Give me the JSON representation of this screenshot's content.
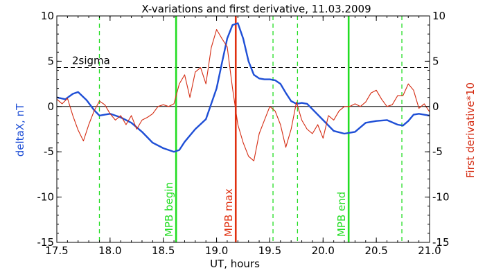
{
  "chart_data": {
    "type": "line",
    "title": "X-variations and first derivative, 11.03.2009",
    "xlabel": "UT, hours",
    "ylabel_left": "deltaX, nT",
    "ylabel_right": "First derivative*10",
    "xlim": [
      17.5,
      21.0
    ],
    "ylim": [
      -15,
      10
    ],
    "xticks": [
      "17.5",
      "18.0",
      "18.5",
      "19.0",
      "19.5",
      "20.0",
      "20.5",
      "21.0"
    ],
    "yticks": [
      "10",
      "5",
      "0",
      "-5",
      "-10",
      "-15"
    ],
    "grid": false,
    "colors": {
      "deltaX": "#1f4fd6",
      "derivative": "#d42a10",
      "green": "#22dd22",
      "red_marker": "#e03010",
      "axis": "#000000"
    },
    "threshold": {
      "label": "2sigma",
      "value": 4.3
    },
    "zero_line": 0,
    "vertical_markers": [
      {
        "x": 18.62,
        "label": "MPB begin",
        "color": "#22dd22",
        "style": "solid"
      },
      {
        "x": 19.18,
        "label": "MPB max",
        "color": "#e03010",
        "style": "solid"
      },
      {
        "x": 20.24,
        "label": "MPB end",
        "color": "#22dd22",
        "style": "solid"
      }
    ],
    "dashed_markers": [
      17.9,
      19.53,
      19.76,
      20.74
    ],
    "series": [
      {
        "key": "deltaX",
        "x": [
          17.5,
          17.58,
          17.65,
          17.7,
          17.78,
          17.85,
          17.9,
          17.95,
          18.0,
          18.1,
          18.2,
          18.3,
          18.4,
          18.5,
          18.6,
          18.65,
          18.7,
          18.8,
          18.9,
          19.0,
          19.05,
          19.1,
          19.15,
          19.2,
          19.25,
          19.3,
          19.35,
          19.4,
          19.45,
          19.5,
          19.55,
          19.6,
          19.65,
          19.7,
          19.75,
          19.8,
          19.85,
          19.9,
          20.0,
          20.1,
          20.2,
          20.3,
          20.4,
          20.5,
          20.6,
          20.7,
          20.75,
          20.8,
          20.85,
          20.9,
          21.0
        ],
        "y": [
          1.0,
          0.8,
          1.4,
          1.6,
          0.7,
          -0.4,
          -1.0,
          -0.9,
          -0.8,
          -1.2,
          -1.8,
          -2.8,
          -4.0,
          -4.6,
          -5.0,
          -4.8,
          -3.9,
          -2.5,
          -1.4,
          2.0,
          4.8,
          7.5,
          9.0,
          9.2,
          7.5,
          5.0,
          3.5,
          3.1,
          3.0,
          3.0,
          2.9,
          2.5,
          1.5,
          0.6,
          0.3,
          0.4,
          0.3,
          -0.3,
          -1.5,
          -2.7,
          -3.0,
          -2.8,
          -1.8,
          -1.6,
          -1.5,
          -2.0,
          -2.1,
          -1.6,
          -0.9,
          -0.8,
          -1.0
        ]
      },
      {
        "key": "derivative",
        "x": [
          17.5,
          17.55,
          17.6,
          17.65,
          17.7,
          17.75,
          17.8,
          17.85,
          17.9,
          17.95,
          18.0,
          18.05,
          18.1,
          18.15,
          18.2,
          18.25,
          18.3,
          18.35,
          18.4,
          18.45,
          18.5,
          18.55,
          18.6,
          18.65,
          18.7,
          18.75,
          18.8,
          18.85,
          18.9,
          18.95,
          19.0,
          19.05,
          19.1,
          19.15,
          19.2,
          19.25,
          19.3,
          19.35,
          19.4,
          19.45,
          19.5,
          19.55,
          19.6,
          19.65,
          19.7,
          19.75,
          19.8,
          19.85,
          19.9,
          19.95,
          20.0,
          20.05,
          20.1,
          20.15,
          20.2,
          20.25,
          20.3,
          20.35,
          20.4,
          20.45,
          20.5,
          20.55,
          20.6,
          20.65,
          20.7,
          20.75,
          20.8,
          20.85,
          20.9,
          20.95,
          21.0
        ],
        "y": [
          0.8,
          0.3,
          0.9,
          -1.0,
          -2.6,
          -3.8,
          -2.0,
          -0.5,
          0.6,
          0.2,
          -0.8,
          -1.5,
          -1.0,
          -2.0,
          -1.0,
          -2.5,
          -1.5,
          -1.2,
          -0.8,
          0.0,
          0.2,
          0.0,
          0.3,
          2.5,
          3.5,
          1.0,
          3.8,
          4.3,
          2.5,
          6.5,
          8.5,
          7.5,
          6.6,
          2.0,
          -2.0,
          -4.0,
          -5.5,
          -6.0,
          -3.0,
          -1.5,
          0.0,
          -0.5,
          -2.0,
          -4.5,
          -2.5,
          0.5,
          -1.5,
          -2.5,
          -3.0,
          -2.0,
          -3.5,
          -1.0,
          -1.5,
          -0.5,
          0.0,
          0.0,
          0.3,
          0.0,
          0.5,
          1.5,
          1.8,
          0.8,
          0.0,
          0.2,
          1.2,
          1.2,
          2.5,
          1.8,
          -0.2,
          0.3,
          -0.6
        ]
      }
    ]
  }
}
